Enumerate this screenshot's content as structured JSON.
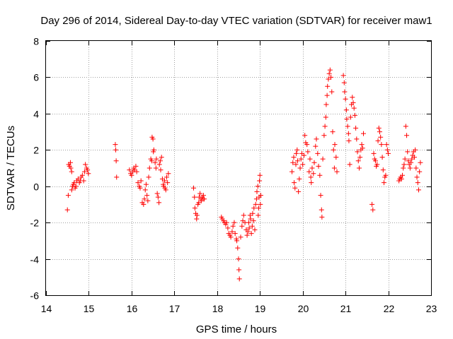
{
  "chart_data": {
    "type": "scatter",
    "title": "Day 296 of 2014, Sidereal Day-to-day VTEC variation (SDTVAR) for receiver maw1",
    "xlabel": "GPS time / hours",
    "ylabel": "SDTVAR / TECUs",
    "xlim": [
      14,
      23
    ],
    "ylim": [
      -6,
      8
    ],
    "xticks": [
      "14",
      "15",
      "16",
      "17",
      "18",
      "19",
      "20",
      "21",
      "22",
      "23"
    ],
    "yticks": [
      "-6",
      "-4",
      "-2",
      "0",
      "2",
      "4",
      "6",
      "8"
    ],
    "grid": true,
    "marker": "+",
    "marker_color": "#ff0000",
    "series": [
      {
        "name": "SDTVAR",
        "points": [
          [
            14.5,
            -1.3
          ],
          [
            14.52,
            -0.5
          ],
          [
            14.53,
            1.2
          ],
          [
            14.55,
            1.1
          ],
          [
            14.57,
            1.3
          ],
          [
            14.58,
            1.0
          ],
          [
            14.6,
            0.8
          ],
          [
            14.6,
            -0.2
          ],
          [
            14.62,
            0.0
          ],
          [
            14.64,
            0.1
          ],
          [
            14.66,
            0.2
          ],
          [
            14.68,
            -0.1
          ],
          [
            14.7,
            0.0
          ],
          [
            14.72,
            0.3
          ],
          [
            14.75,
            0.4
          ],
          [
            14.78,
            0.2
          ],
          [
            14.8,
            0.3
          ],
          [
            14.82,
            0.5
          ],
          [
            14.85,
            0.6
          ],
          [
            14.88,
            0.3
          ],
          [
            14.9,
            0.8
          ],
          [
            14.92,
            1.2
          ],
          [
            14.95,
            1.0
          ],
          [
            14.97,
            0.9
          ],
          [
            14.99,
            0.7
          ],
          [
            15.62,
            2.3
          ],
          [
            15.63,
            2.0
          ],
          [
            15.64,
            1.4
          ],
          [
            15.65,
            0.5
          ],
          [
            15.95,
            0.9
          ],
          [
            15.98,
            0.7
          ],
          [
            16.0,
            0.6
          ],
          [
            16.03,
            0.8
          ],
          [
            16.05,
            1.0
          ],
          [
            16.07,
            0.9
          ],
          [
            16.1,
            1.1
          ],
          [
            16.12,
            0.8
          ],
          [
            16.15,
            0.2
          ],
          [
            16.18,
            0.0
          ],
          [
            16.2,
            -0.1
          ],
          [
            16.22,
            0.3
          ],
          [
            16.25,
            -0.9
          ],
          [
            16.28,
            -1.0
          ],
          [
            16.3,
            -0.7
          ],
          [
            16.32,
            -0.2
          ],
          [
            16.34,
            0.1
          ],
          [
            16.36,
            -0.5
          ],
          [
            16.38,
            -0.8
          ],
          [
            16.4,
            0.5
          ],
          [
            16.42,
            1.0
          ],
          [
            16.45,
            1.5
          ],
          [
            16.47,
            1.4
          ],
          [
            16.48,
            2.7
          ],
          [
            16.5,
            2.6
          ],
          [
            16.51,
            1.9
          ],
          [
            16.52,
            2.0
          ],
          [
            16.55,
            1.3
          ],
          [
            16.57,
            1.0
          ],
          [
            16.58,
            1.5
          ],
          [
            16.6,
            -0.4
          ],
          [
            16.62,
            -0.6
          ],
          [
            16.64,
            -0.9
          ],
          [
            16.65,
            1.2
          ],
          [
            16.67,
            1.4
          ],
          [
            16.68,
            0.9
          ],
          [
            16.7,
            1.6
          ],
          [
            16.72,
            0.4
          ],
          [
            16.74,
            0.1
          ],
          [
            16.75,
            0.0
          ],
          [
            16.77,
            0.3
          ],
          [
            16.78,
            -0.1
          ],
          [
            16.8,
            -0.2
          ],
          [
            16.82,
            0.5
          ],
          [
            16.84,
            0.2
          ],
          [
            16.86,
            0.7
          ],
          [
            17.45,
            -0.1
          ],
          [
            17.47,
            -0.6
          ],
          [
            17.48,
            -1.2
          ],
          [
            17.5,
            -1.5
          ],
          [
            17.52,
            -1.8
          ],
          [
            17.53,
            -1.6
          ],
          [
            17.55,
            -1.0
          ],
          [
            17.57,
            -0.9
          ],
          [
            17.58,
            -0.6
          ],
          [
            17.6,
            -0.4
          ],
          [
            17.62,
            -0.7
          ],
          [
            17.63,
            -0.8
          ],
          [
            17.65,
            -0.6
          ],
          [
            17.67,
            -0.7
          ],
          [
            17.68,
            -0.5
          ],
          [
            17.7,
            -0.7
          ],
          [
            18.1,
            -1.7
          ],
          [
            18.12,
            -1.8
          ],
          [
            18.15,
            -1.9
          ],
          [
            18.17,
            -2.0
          ],
          [
            18.2,
            -2.1
          ],
          [
            18.22,
            -2.0
          ],
          [
            18.25,
            -2.3
          ],
          [
            18.27,
            -2.6
          ],
          [
            18.3,
            -2.7
          ],
          [
            18.32,
            -2.8
          ],
          [
            18.35,
            -2.5
          ],
          [
            18.37,
            -2.2
          ],
          [
            18.4,
            -2.0
          ],
          [
            18.42,
            -2.6
          ],
          [
            18.45,
            -2.9
          ],
          [
            18.46,
            -3.0
          ],
          [
            18.48,
            -3.4
          ],
          [
            18.5,
            -4.0
          ],
          [
            18.51,
            -4.6
          ],
          [
            18.52,
            -5.1
          ],
          [
            18.55,
            -2.8
          ],
          [
            18.58,
            -2.2
          ],
          [
            18.6,
            -1.9
          ],
          [
            18.62,
            -1.6
          ],
          [
            18.65,
            -2.0
          ],
          [
            18.68,
            -2.4
          ],
          [
            18.7,
            -2.7
          ],
          [
            18.72,
            -2.5
          ],
          [
            18.74,
            -2.0
          ],
          [
            18.75,
            -2.3
          ],
          [
            18.77,
            -1.6
          ],
          [
            18.78,
            -1.8
          ],
          [
            18.8,
            -2.6
          ],
          [
            18.82,
            -2.2
          ],
          [
            18.83,
            -1.5
          ],
          [
            18.85,
            -1.9
          ],
          [
            18.86,
            -1.2
          ],
          [
            18.88,
            -2.4
          ],
          [
            18.9,
            -1.0
          ],
          [
            18.92,
            -0.7
          ],
          [
            18.93,
            -0.3
          ],
          [
            18.95,
            0.0
          ],
          [
            18.96,
            -1.6
          ],
          [
            18.97,
            -1.2
          ],
          [
            18.98,
            -0.6
          ],
          [
            18.99,
            0.3
          ],
          [
            19.0,
            0.6
          ],
          [
            19.01,
            -1.0
          ],
          [
            19.02,
            -0.5
          ],
          [
            19.75,
            0.8
          ],
          [
            19.77,
            1.3
          ],
          [
            19.79,
            1.6
          ],
          [
            19.8,
            0.2
          ],
          [
            19.82,
            -0.1
          ],
          [
            19.84,
            1.2
          ],
          [
            19.85,
            1.8
          ],
          [
            19.87,
            2.0
          ],
          [
            19.88,
            1.4
          ],
          [
            19.9,
            -0.3
          ],
          [
            19.92,
            0.4
          ],
          [
            19.94,
            1.0
          ],
          [
            19.96,
            1.5
          ],
          [
            19.98,
            1.8
          ],
          [
            20.0,
            1.2
          ],
          [
            20.03,
            1.7
          ],
          [
            20.05,
            2.8
          ],
          [
            20.07,
            2.4
          ],
          [
            20.1,
            2.3
          ],
          [
            20.12,
            1.9
          ],
          [
            20.15,
            0.8
          ],
          [
            20.17,
            1.5
          ],
          [
            20.19,
            0.5
          ],
          [
            20.2,
            0.2
          ],
          [
            20.22,
            1.0
          ],
          [
            20.25,
            0.7
          ],
          [
            20.27,
            1.3
          ],
          [
            20.3,
            2.2
          ],
          [
            20.32,
            2.6
          ],
          [
            20.35,
            1.8
          ],
          [
            20.37,
            1.1
          ],
          [
            20.4,
            0.6
          ],
          [
            20.42,
            -0.5
          ],
          [
            20.44,
            -1.3
          ],
          [
            20.45,
            -1.7
          ],
          [
            20.47,
            1.5
          ],
          [
            20.5,
            2.8
          ],
          [
            20.52,
            3.3
          ],
          [
            20.54,
            3.8
          ],
          [
            20.55,
            4.5
          ],
          [
            20.57,
            5.0
          ],
          [
            20.58,
            5.5
          ],
          [
            20.6,
            5.9
          ],
          [
            20.62,
            6.2
          ],
          [
            20.64,
            6.4
          ],
          [
            20.66,
            6.0
          ],
          [
            20.68,
            5.2
          ],
          [
            20.7,
            3.0
          ],
          [
            20.72,
            2.0
          ],
          [
            20.74,
            1.0
          ],
          [
            20.75,
            2.3
          ],
          [
            20.78,
            1.6
          ],
          [
            20.8,
            0.8
          ],
          [
            20.95,
            6.1
          ],
          [
            20.97,
            5.7
          ],
          [
            20.98,
            5.2
          ],
          [
            21.0,
            4.8
          ],
          [
            21.02,
            4.2
          ],
          [
            21.03,
            3.7
          ],
          [
            21.05,
            3.3
          ],
          [
            21.07,
            2.9
          ],
          [
            21.08,
            2.5
          ],
          [
            21.1,
            1.2
          ],
          [
            21.12,
            3.8
          ],
          [
            21.14,
            4.5
          ],
          [
            21.16,
            4.9
          ],
          [
            21.18,
            4.6
          ],
          [
            21.2,
            4.3
          ],
          [
            21.22,
            3.9
          ],
          [
            21.24,
            3.2
          ],
          [
            21.26,
            2.6
          ],
          [
            21.28,
            1.9
          ],
          [
            21.3,
            1.4
          ],
          [
            21.32,
            1.0
          ],
          [
            21.34,
            1.6
          ],
          [
            21.36,
            2.0
          ],
          [
            21.38,
            2.3
          ],
          [
            21.4,
            2.1
          ],
          [
            21.42,
            2.9
          ],
          [
            21.62,
            -1.0
          ],
          [
            21.64,
            -1.3
          ],
          [
            21.66,
            1.8
          ],
          [
            21.68,
            1.5
          ],
          [
            21.7,
            1.4
          ],
          [
            21.72,
            1.1
          ],
          [
            21.74,
            1.2
          ],
          [
            21.76,
            2.5
          ],
          [
            21.78,
            3.2
          ],
          [
            21.8,
            3.0
          ],
          [
            21.82,
            2.7
          ],
          [
            21.84,
            2.3
          ],
          [
            21.86,
            1.6
          ],
          [
            21.88,
            0.9
          ],
          [
            21.9,
            0.2
          ],
          [
            21.92,
            0.5
          ],
          [
            21.94,
            0.6
          ],
          [
            21.96,
            2.3
          ],
          [
            21.98,
            2.0
          ],
          [
            22.0,
            1.8
          ],
          [
            22.25,
            0.3
          ],
          [
            22.27,
            0.4
          ],
          [
            22.29,
            0.5
          ],
          [
            22.31,
            0.4
          ],
          [
            22.33,
            0.6
          ],
          [
            22.35,
            1.0
          ],
          [
            22.37,
            1.2
          ],
          [
            22.39,
            1.5
          ],
          [
            22.41,
            3.3
          ],
          [
            22.43,
            2.8
          ],
          [
            22.45,
            1.9
          ],
          [
            22.47,
            1.4
          ],
          [
            22.49,
            1.2
          ],
          [
            22.51,
            1.0
          ],
          [
            22.53,
            1.3
          ],
          [
            22.55,
            1.5
          ],
          [
            22.57,
            1.7
          ],
          [
            22.59,
            1.9
          ],
          [
            22.61,
            1.6
          ],
          [
            22.63,
            2.0
          ],
          [
            22.65,
            1.0
          ],
          [
            22.67,
            0.5
          ],
          [
            22.69,
            0.2
          ],
          [
            22.71,
            -0.2
          ],
          [
            22.73,
            0.8
          ],
          [
            22.75,
            1.3
          ]
        ]
      }
    ]
  }
}
